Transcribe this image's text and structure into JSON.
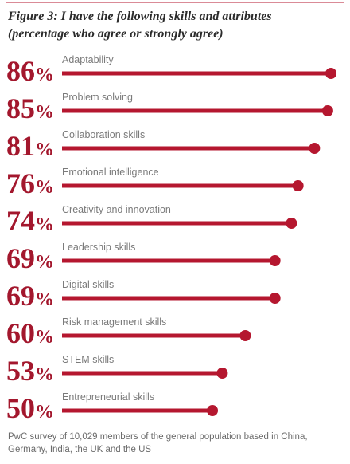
{
  "chart_data": {
    "type": "lollipop",
    "title": "Figure 3: I have the following skills and attributes",
    "subtitle": "(percentage who agree or strongly agree)",
    "categories": [
      "Adaptability",
      "Problem solving",
      "Collaboration skills",
      "Emotional intelligence",
      "Creativity and innovation",
      "Leadership skills",
      "Digital skills",
      "Risk management skills",
      "STEM skills",
      "Entrepreneurial skills"
    ],
    "values": [
      86,
      85,
      81,
      76,
      74,
      69,
      69,
      60,
      53,
      50
    ],
    "value_labels": [
      "86%",
      "85%",
      "81%",
      "76%",
      "74%",
      "69%",
      "69%",
      "60%",
      "53%",
      "50%"
    ],
    "color": "#b5172f",
    "source": "PwC survey of 10,029 members of the general population based in China, Germany, India, the UK and the US"
  }
}
